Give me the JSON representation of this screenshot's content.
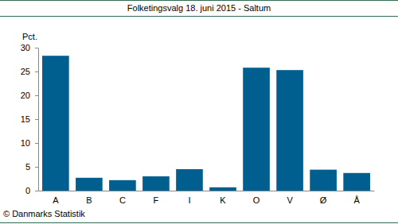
{
  "chart_data": {
    "type": "bar",
    "title": "Folketingsvalg 18. juni 2015 - Saltum",
    "y_label": "Pct.",
    "source": "© Danmarks Statistik",
    "categories": [
      "A",
      "B",
      "C",
      "F",
      "I",
      "K",
      "O",
      "V",
      "Ø",
      "Å"
    ],
    "values": [
      28.3,
      2.7,
      2.2,
      3.0,
      4.5,
      0.7,
      25.8,
      25.3,
      4.4,
      3.7
    ],
    "color": "#005f8f",
    "ylim": [
      0,
      30
    ],
    "yticks": [
      0,
      5,
      10,
      15,
      20,
      25,
      30
    ],
    "grid": false
  }
}
